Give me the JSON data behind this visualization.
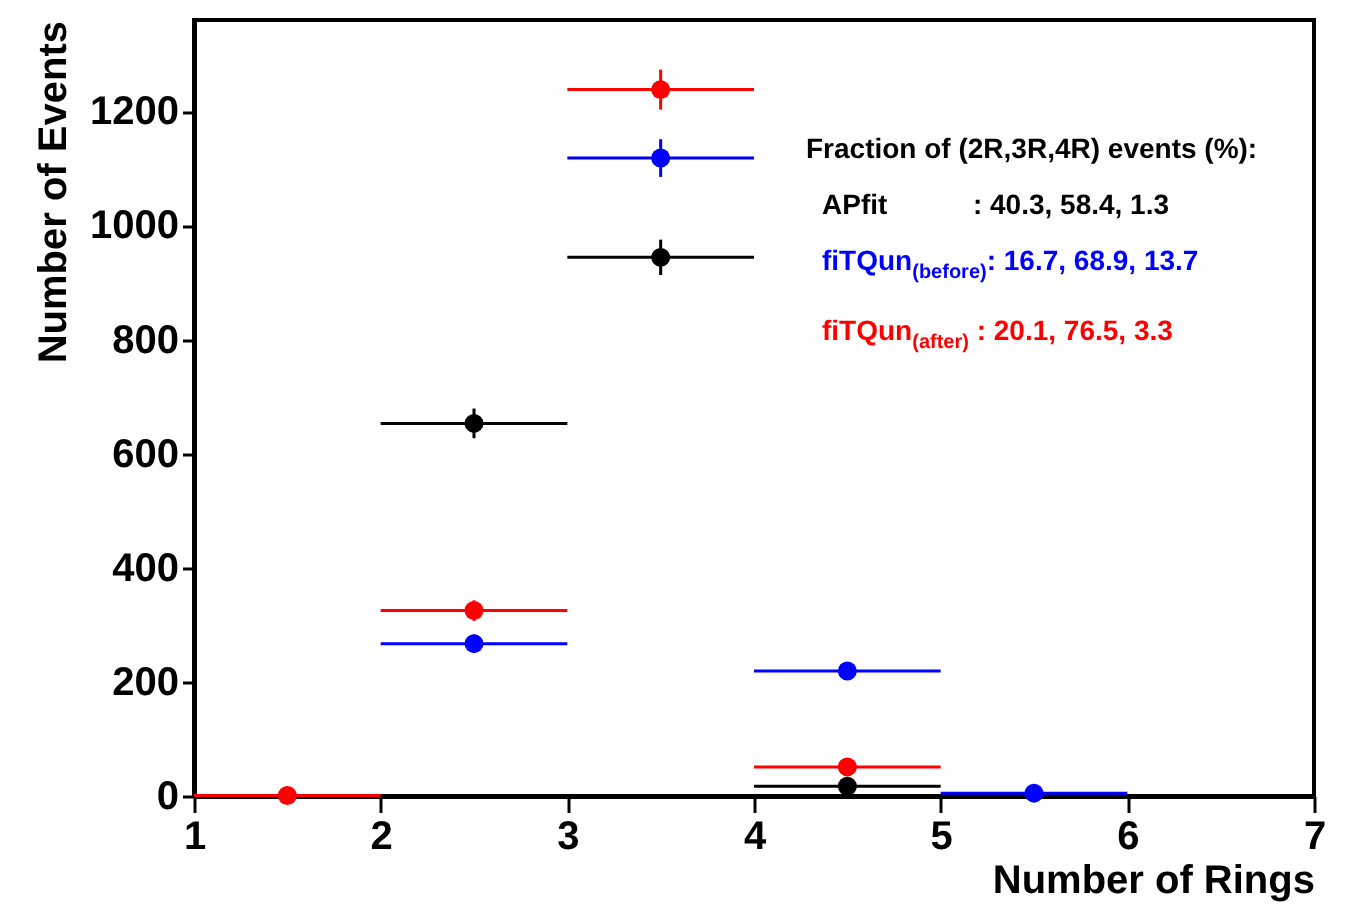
{
  "chart_data": {
    "type": "scatter",
    "xlabel": "Number of Rings",
    "ylabel": "Number of Events",
    "x": [
      1.5,
      2.5,
      3.5,
      4.5,
      5.5
    ],
    "xlim": [
      1,
      7
    ],
    "xticks": [
      1,
      2,
      3,
      4,
      5,
      6,
      7
    ],
    "ylim": [
      0,
      1360
    ],
    "yticks": [
      0,
      200,
      400,
      600,
      800,
      1000,
      1200
    ],
    "grid": false,
    "marker": "circle",
    "annotations": [
      "Fraction of (2R,3R,4R) events (%):",
      "APfit           : 40.3, 58.4, 1.3",
      "fiTQun$_{(before)}$: 16.7, 68.9, 13.7",
      "fiTQun$_{(after)}$ : 20.1, 76.5, 3.3"
    ],
    "series": [
      {
        "color": "#000000",
        "values": [
          null,
          653,
          944,
          17,
          null
        ],
        "errors": [
          null,
          26,
          31,
          4,
          null
        ],
        "xerrors": [
          null,
          0.5,
          0.5,
          0.5,
          null
        ]
      },
      {
        "color": "#0000ff",
        "values": [
          null,
          267,
          1118,
          219,
          5
        ],
        "errors": [
          null,
          16,
          33,
          15,
          2
        ],
        "xerrors": [
          null,
          0.5,
          0.5,
          0.5,
          0.5
        ]
      },
      {
        "color": "#ff0000",
        "values": [
          1,
          325,
          1238,
          51,
          null
        ],
        "errors": [
          null,
          18,
          35,
          7,
          null
        ],
        "xerrors": [
          0.5,
          0.5,
          0.5,
          0.5,
          null
        ]
      }
    ]
  }
}
